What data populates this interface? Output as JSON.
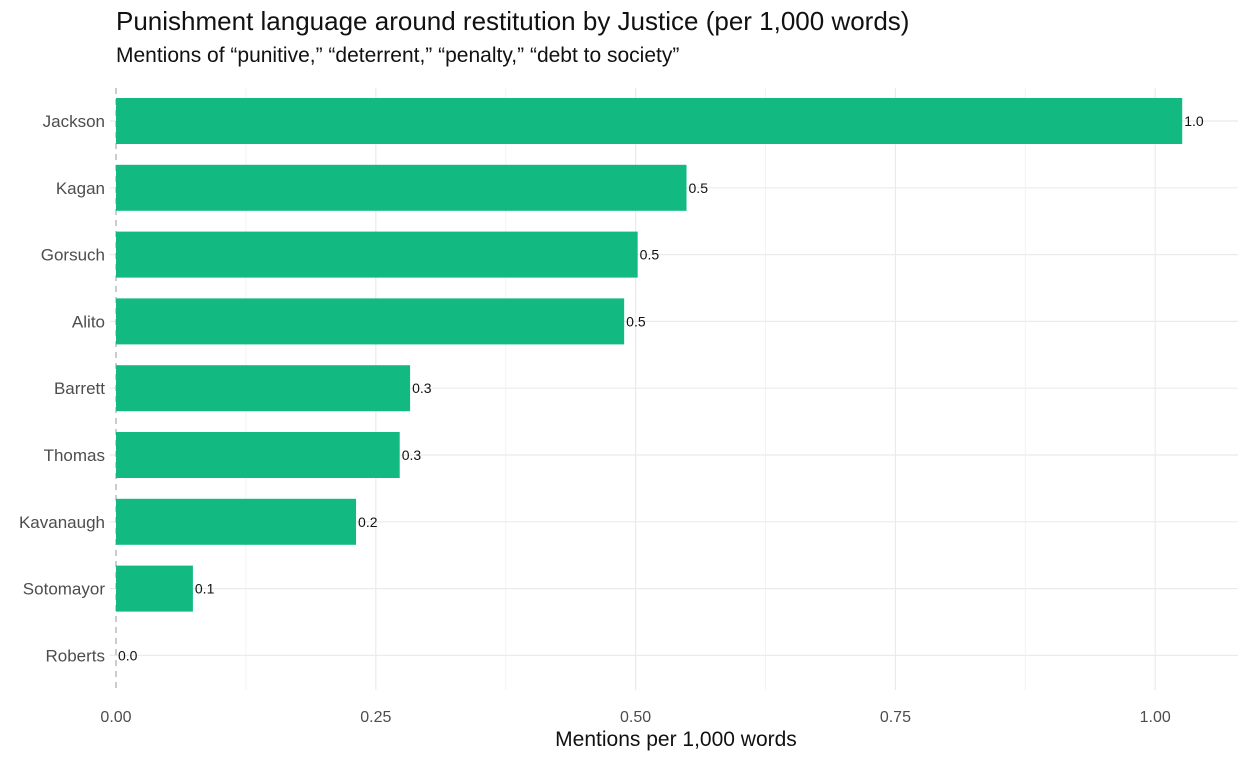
{
  "chart_data": {
    "type": "bar",
    "orientation": "horizontal",
    "title": "Punishment language around restitution by Justice (per 1,000 words)",
    "subtitle": "Mentions of “punitive,” “deterrent,” “penalty,” “debt to society”",
    "xlabel": "Mentions per 1,000 words",
    "ylabel": "",
    "xlim": [
      0,
      1.07
    ],
    "xticks": [
      "0.00",
      "0.25",
      "0.50",
      "0.75",
      "1.00"
    ],
    "xtick_values": [
      0,
      0.25,
      0.5,
      0.75,
      1.0
    ],
    "grid": true,
    "bar_color": "#12b981",
    "categories": [
      "Jackson",
      "Kagan",
      "Gorsuch",
      "Alito",
      "Barrett",
      "Thomas",
      "Kavanaugh",
      "Sotomayor",
      "Roberts"
    ],
    "values": [
      1.026,
      0.549,
      0.502,
      0.489,
      0.283,
      0.273,
      0.231,
      0.074,
      0.0
    ],
    "data_labels": [
      "1.0",
      "0.5",
      "0.5",
      "0.5",
      "0.3",
      "0.3",
      "0.2",
      "0.1",
      "0.0"
    ]
  }
}
